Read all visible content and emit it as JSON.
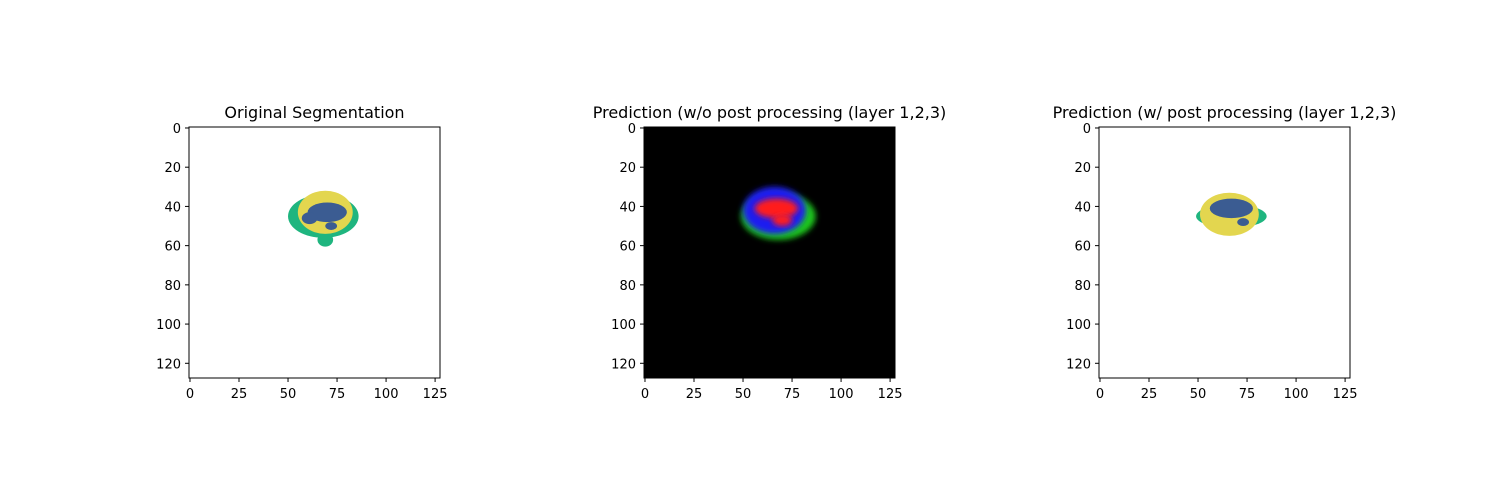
{
  "chart_data": [
    {
      "type": "heatmap",
      "title": "Original Segmentation",
      "xticks": [
        0,
        25,
        50,
        75,
        100,
        125
      ],
      "yticks": [
        0,
        20,
        40,
        60,
        80,
        100,
        120
      ],
      "xlim": [
        -0.5,
        127.5
      ],
      "ylim": [
        127.5,
        -0.5
      ],
      "background": "#ffffff",
      "colors": {
        "outer": "#1fb57f",
        "middle": "#e3d64f",
        "inner": "#3b5c92"
      },
      "regions": [
        {
          "class": "outer",
          "cx": 68,
          "cy": 45,
          "rx": 18,
          "ry": 11
        },
        {
          "class": "outer",
          "cx": 69,
          "cy": 57,
          "rx": 4,
          "ry": 3.5
        },
        {
          "class": "middle",
          "cx": 69,
          "cy": 43,
          "rx": 14,
          "ry": 11
        },
        {
          "class": "inner",
          "cx": 70,
          "cy": 43,
          "rx": 10,
          "ry": 5
        },
        {
          "class": "inner",
          "cx": 61,
          "cy": 46,
          "rx": 4,
          "ry": 3
        },
        {
          "class": "inner",
          "cx": 72,
          "cy": 50,
          "rx": 3,
          "ry": 2
        }
      ]
    },
    {
      "type": "heatmap",
      "title": "Prediction (w/o post processing (layer 1,2,3)",
      "xticks": [
        0,
        25,
        50,
        75,
        100,
        125
      ],
      "yticks": [
        0,
        20,
        40,
        60,
        80,
        100,
        120
      ],
      "xlim": [
        -0.5,
        127.5
      ],
      "ylim": [
        127.5,
        -0.5
      ],
      "background": "#000000",
      "colors": {
        "outer": "#1fc81f",
        "middle": "#1e1ef0",
        "inner": "#ff1a1a"
      },
      "regions": [
        {
          "class": "outer",
          "cx": 68,
          "cy": 45,
          "rx": 19,
          "ry": 12
        },
        {
          "class": "middle",
          "cx": 66,
          "cy": 42,
          "rx": 16,
          "ry": 12
        },
        {
          "class": "inner",
          "cx": 67,
          "cy": 41,
          "rx": 11,
          "ry": 5
        },
        {
          "class": "inner",
          "cx": 70,
          "cy": 47,
          "rx": 5,
          "ry": 3
        }
      ]
    },
    {
      "type": "heatmap",
      "title": "Prediction (w/ post processing (layer 1,2,3)",
      "xticks": [
        0,
        25,
        50,
        75,
        100,
        125
      ],
      "yticks": [
        0,
        20,
        40,
        60,
        80,
        100,
        120
      ],
      "xlim": [
        -0.5,
        127.5
      ],
      "ylim": [
        127.5,
        -0.5
      ],
      "background": "#ffffff",
      "colors": {
        "outer": "#1fb57f",
        "middle": "#e3d64f",
        "inner": "#3b5c92"
      },
      "regions": [
        {
          "class": "outer",
          "cx": 67,
          "cy": 45,
          "rx": 18,
          "ry": 6
        },
        {
          "class": "middle",
          "cx": 66,
          "cy": 44,
          "rx": 15,
          "ry": 11
        },
        {
          "class": "inner",
          "cx": 67,
          "cy": 41,
          "rx": 11,
          "ry": 5
        },
        {
          "class": "inner",
          "cx": 73,
          "cy": 48,
          "rx": 3,
          "ry": 2
        }
      ]
    }
  ]
}
